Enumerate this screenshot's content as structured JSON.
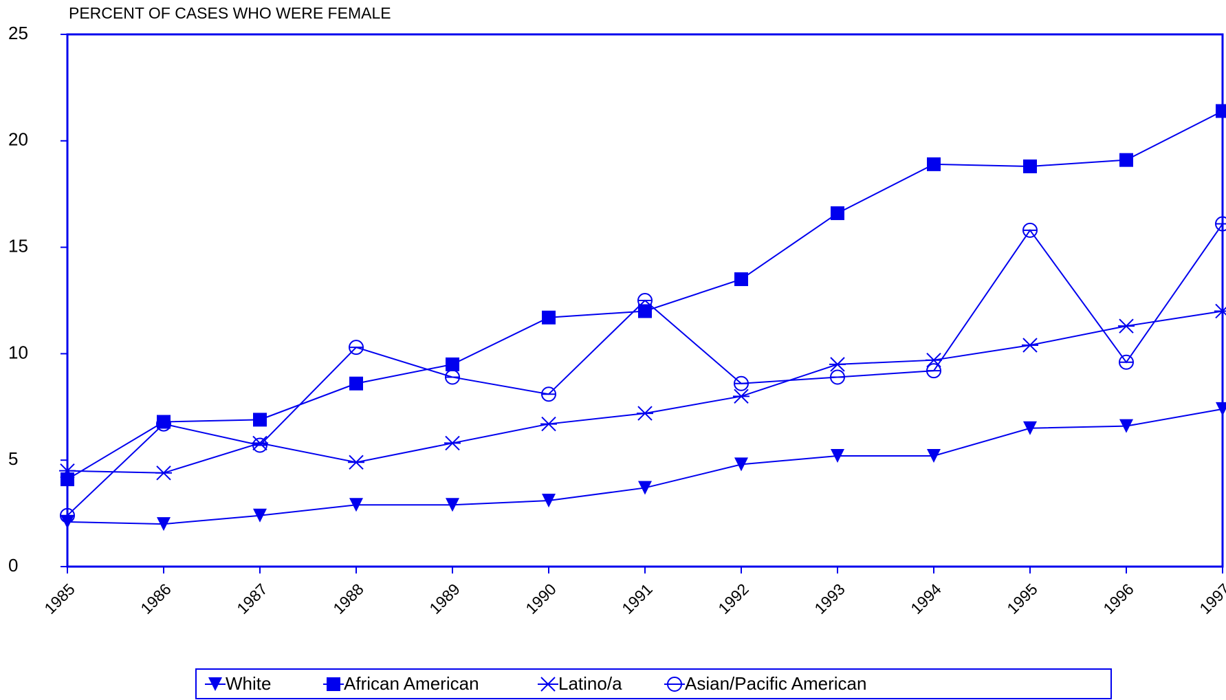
{
  "chart_data": {
    "type": "line",
    "title": "PERCENT OF CASES WHO WERE FEMALE",
    "categories": [
      "1985",
      "1986",
      "1987",
      "1988",
      "1989",
      "1990",
      "1991",
      "1992",
      "1993",
      "1994",
      "1995",
      "1996",
      "1997"
    ],
    "series": [
      {
        "name": "White",
        "color": "#0000ee",
        "marker": "triangle-down",
        "values": [
          2.1,
          2.0,
          2.4,
          2.9,
          2.9,
          3.1,
          3.7,
          4.8,
          5.2,
          5.2,
          6.5,
          6.6,
          7.4
        ]
      },
      {
        "name": "African American",
        "color": "#0000ee",
        "marker": "square",
        "values": [
          4.1,
          6.8,
          6.9,
          8.6,
          9.5,
          11.7,
          12.0,
          13.5,
          16.6,
          18.9,
          18.8,
          19.1,
          21.4
        ]
      },
      {
        "name": "Latino/a",
        "color": "#0000ee",
        "marker": "asterisk",
        "values": [
          4.5,
          4.4,
          5.8,
          4.9,
          5.8,
          6.7,
          7.2,
          8.0,
          9.5,
          9.7,
          10.4,
          11.3,
          12.0
        ]
      },
      {
        "name": "Asian/Pacific American",
        "color": "#0000ee",
        "marker": "circle",
        "values": [
          2.4,
          6.7,
          5.7,
          10.3,
          8.9,
          8.1,
          12.5,
          8.6,
          8.9,
          9.2,
          15.8,
          9.6,
          16.1
        ]
      }
    ],
    "ylim": [
      0,
      25
    ],
    "yticks": [
      0,
      5,
      10,
      15,
      20,
      25
    ],
    "legend": "bottom"
  }
}
